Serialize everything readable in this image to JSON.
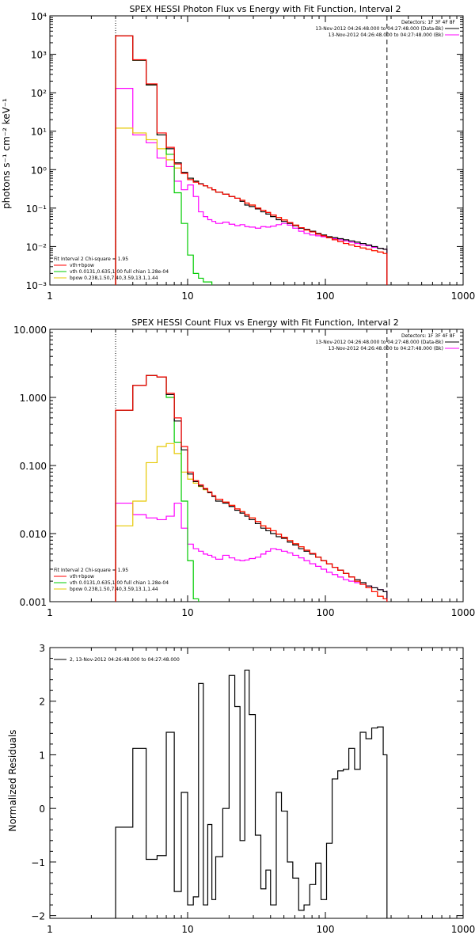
{
  "colors": {
    "data": "#000000",
    "bk": "#ff00ff",
    "total": "#ff0000",
    "vth": "#00cc00",
    "bpow": "#e6c800",
    "axis": "#000000"
  },
  "chart_data": [
    {
      "type": "line",
      "scale": "log-log",
      "title": "SPEX HESSI Photon Flux vs Energy with Fit Function, Interval 2",
      "xlabel": "",
      "ylabel": "photons s⁻¹ cm⁻² keV⁻¹",
      "xlim": [
        1,
        1000
      ],
      "ylim": [
        0.001,
        10000
      ],
      "xticks": [
        "1",
        "10",
        "100",
        "1000"
      ],
      "yticks": [
        "10⁻³",
        "10⁻²",
        "10⁻¹",
        "10⁰",
        "10¹",
        "10²",
        "10³",
        "10⁴"
      ],
      "ymin_ticks": [
        0.001,
        0.01,
        0.1,
        1,
        10,
        100,
        1000,
        10000
      ],
      "vlines": [
        3,
        280
      ],
      "legend_right": [
        "Detectors: 1F 3F 4F 8F",
        "13-Nov-2012 04:26:48.000 to 04:27:48.000 (Data-Bk)",
        "13-Nov-2012 04:26:48.000 to 04:27:48.000 (Bk)"
      ],
      "legend_left": [
        "Fit Interval 2   Chi-square = 1.95",
        "vth+bpow",
        "vth 0.0131,0.635,1.00  full chian 1.28e-04",
        "bpow 0.238,1.50,7.40,3.59,13.1,1.44"
      ],
      "edges": [
        3,
        4,
        5,
        6,
        7,
        8,
        9,
        10,
        11,
        12,
        13,
        14,
        15,
        16,
        18,
        20,
        22,
        24,
        26,
        28,
        31,
        34,
        37,
        40,
        44,
        48,
        53,
        58,
        64,
        70,
        77,
        85,
        93,
        102,
        112,
        123,
        135,
        148,
        163,
        179,
        197,
        217,
        239,
        263,
        280
      ],
      "series": [
        {
          "name": "Data-Bk",
          "key": "data",
          "values": [
            3000,
            700,
            160,
            8,
            3.5,
            1.5,
            0.85,
            0.6,
            0.5,
            0.43,
            0.38,
            0.34,
            0.3,
            0.26,
            0.23,
            0.2,
            0.18,
            0.15,
            0.12,
            0.11,
            0.095,
            0.08,
            0.07,
            0.06,
            0.05,
            0.045,
            0.04,
            0.035,
            0.03,
            0.028,
            0.025,
            0.022,
            0.02,
            0.018,
            0.017,
            0.016,
            0.015,
            0.014,
            0.013,
            0.012,
            0.011,
            0.01,
            0.009,
            0.0085
          ]
        },
        {
          "name": "Bk",
          "key": "bk",
          "values": [
            130,
            8,
            5,
            2,
            1.2,
            0.5,
            0.3,
            0.4,
            0.2,
            0.08,
            0.06,
            0.05,
            0.045,
            0.04,
            0.043,
            0.038,
            0.035,
            0.037,
            0.033,
            0.032,
            0.03,
            0.033,
            0.032,
            0.034,
            0.037,
            0.04,
            0.036,
            0.03,
            0.025,
            0.022,
            0.02,
            0.019,
            0.018,
            0.017,
            0.016,
            0.015,
            0.014,
            0.013,
            0.012,
            0.011,
            0.0105,
            0.0095,
            0.009,
            0.0085
          ]
        },
        {
          "name": "vth+bpow",
          "key": "total",
          "values": [
            3000,
            720,
            170,
            9,
            3.8,
            1.4,
            0.8,
            0.55,
            0.47,
            0.42,
            0.38,
            0.34,
            0.3,
            0.26,
            0.23,
            0.2,
            0.18,
            0.16,
            0.135,
            0.12,
            0.1,
            0.088,
            0.077,
            0.066,
            0.057,
            0.049,
            0.042,
            0.036,
            0.031,
            0.027,
            0.024,
            0.021,
            0.019,
            0.017,
            0.015,
            0.0135,
            0.012,
            0.011,
            0.01,
            0.0092,
            0.0085,
            0.0078,
            0.0072,
            0.0066
          ]
        },
        {
          "name": "vth",
          "key": "vth",
          "values": [
            3000,
            700,
            160,
            8,
            2.5,
            0.25,
            0.04,
            0.006,
            0.002,
            0.0015,
            0.0012,
            0.0012
          ]
        },
        {
          "name": "bpow",
          "key": "bpow",
          "values": [
            12,
            9,
            6,
            3.5,
            1.8,
            1.1,
            0.8,
            0.6,
            0.5,
            0.43,
            0.38,
            0.34,
            0.3,
            0.26,
            0.23,
            0.2,
            0.18,
            0.16,
            0.135,
            0.12,
            0.1,
            0.088,
            0.077,
            0.066,
            0.057,
            0.049,
            0.042,
            0.036,
            0.031,
            0.027,
            0.024,
            0.021,
            0.019,
            0.017,
            0.015,
            0.0135,
            0.012,
            0.011,
            0.01,
            0.0092,
            0.0085,
            0.0078,
            0.0072,
            0.0066
          ]
        }
      ]
    },
    {
      "type": "line",
      "scale": "log-log",
      "title": "SPEX HESSI Count Flux vs Energy with Fit Function, Interval 2",
      "xlabel": "",
      "ylabel": "",
      "xlim": [
        1,
        1000
      ],
      "ylim": [
        0.001,
        10
      ],
      "xticks": [
        "1",
        "10",
        "100",
        "1000"
      ],
      "yticks": [
        "0.001",
        "0.010",
        "0.100",
        "1.000",
        "10.000"
      ],
      "ymin_ticks": [
        0.001,
        0.01,
        0.1,
        1,
        10
      ],
      "vlines": [
        3,
        280
      ],
      "legend_right": [
        "Detectors: 1F 3F 4F 8F",
        "13-Nov-2012 04:26:48.000 to 04:27:48.000 (Data-Bk)",
        "13-Nov-2012 04:26:48.000 to 04:27:48.000 (Bk)"
      ],
      "legend_left": [
        "Fit Interval 2   Chi-square = 1.95",
        "vth+bpow",
        "vth 0.0131,0.635,1.00  full chian 1.28e-04",
        "bpow 0.238,1.50,7.40,3.59,13.1,1.44"
      ],
      "edges": [
        3,
        4,
        5,
        6,
        7,
        8,
        9,
        10,
        11,
        12,
        13,
        14,
        15,
        16,
        18,
        20,
        22,
        24,
        26,
        28,
        31,
        34,
        37,
        40,
        44,
        48,
        53,
        58,
        64,
        70,
        77,
        85,
        93,
        102,
        112,
        123,
        135,
        148,
        163,
        179,
        197,
        217,
        239,
        263,
        280
      ],
      "series": [
        {
          "name": "Data-Bk",
          "key": "data",
          "values": [
            0.65,
            1.5,
            2.1,
            2.0,
            1.1,
            0.45,
            0.17,
            0.075,
            0.058,
            0.05,
            0.045,
            0.04,
            0.035,
            0.03,
            0.028,
            0.025,
            0.022,
            0.02,
            0.018,
            0.016,
            0.014,
            0.012,
            0.011,
            0.01,
            0.009,
            0.0085,
            0.0075,
            0.0068,
            0.006,
            0.0055,
            0.005,
            0.0045,
            0.004,
            0.0036,
            0.0032,
            0.0029,
            0.0026,
            0.0023,
            0.0021,
            0.0019,
            0.0017,
            0.0016,
            0.0015,
            0.0014
          ]
        },
        {
          "name": "Bk",
          "key": "bk",
          "values": [
            0.028,
            0.019,
            0.017,
            0.016,
            0.018,
            0.028,
            0.012,
            0.007,
            0.006,
            0.0055,
            0.005,
            0.0048,
            0.0045,
            0.0042,
            0.0048,
            0.0044,
            0.0041,
            0.004,
            0.0041,
            0.0043,
            0.0045,
            0.005,
            0.0055,
            0.006,
            0.0058,
            0.0055,
            0.0052,
            0.0048,
            0.0044,
            0.004,
            0.0036,
            0.0033,
            0.003,
            0.0027,
            0.0025,
            0.0023,
            0.0021,
            0.002,
            0.0019,
            0.0018,
            0.0017,
            0.0016,
            0.0015,
            0.0014
          ]
        },
        {
          "name": "vth+bpow",
          "key": "total",
          "values": [
            0.65,
            1.5,
            2.1,
            2.0,
            1.15,
            0.5,
            0.19,
            0.08,
            0.06,
            0.052,
            0.046,
            0.041,
            0.036,
            0.032,
            0.029,
            0.026,
            0.023,
            0.021,
            0.019,
            0.017,
            0.015,
            0.013,
            0.012,
            0.011,
            0.0098,
            0.0088,
            0.0079,
            0.0071,
            0.0064,
            0.0057,
            0.0051,
            0.0045,
            0.004,
            0.0036,
            0.0032,
            0.0029,
            0.0026,
            0.0023,
            0.002,
            0.0018,
            0.0016,
            0.0014,
            0.0012,
            0.0011
          ]
        },
        {
          "name": "vth",
          "key": "vth",
          "values": [
            0.65,
            1.5,
            2.1,
            2.0,
            1.0,
            0.22,
            0.03,
            0.004,
            0.0011
          ]
        },
        {
          "name": "bpow",
          "key": "bpow",
          "values": [
            0.013,
            0.03,
            0.11,
            0.19,
            0.21,
            0.15,
            0.08,
            0.063,
            0.055,
            0.049,
            0.044,
            0.04,
            0.036,
            0.032,
            0.029,
            0.026,
            0.023,
            0.021,
            0.019,
            0.017,
            0.015,
            0.013,
            0.012,
            0.011,
            0.0098,
            0.0088,
            0.0079,
            0.0071,
            0.0064,
            0.0057,
            0.0051,
            0.0045,
            0.004,
            0.0036,
            0.0032,
            0.0029,
            0.0026,
            0.0023,
            0.002,
            0.0018,
            0.0016,
            0.0014,
            0.0012,
            0.0011
          ]
        }
      ]
    },
    {
      "type": "line",
      "scale": "log-linear",
      "title": "",
      "xlabel": "",
      "ylabel": "Normalized Residuals",
      "xlim": [
        1,
        1000
      ],
      "ylim": [
        -2.05,
        3
      ],
      "xticks": [
        "1",
        "10",
        "100",
        "1000"
      ],
      "yticks": [
        "−2",
        "−1",
        "0",
        "1",
        "2",
        "3"
      ],
      "legend_left": [
        "2, 13-Nov-2012 04:26:48.000 to 04:27:48.000"
      ],
      "edges": [
        3,
        4,
        5,
        6,
        7,
        8,
        9,
        10,
        11,
        12,
        13,
        14,
        15,
        16,
        18,
        20,
        22,
        24,
        26,
        28,
        31,
        34,
        37,
        40,
        44,
        48,
        53,
        58,
        64,
        70,
        77,
        85,
        93,
        102,
        112,
        123,
        135,
        148,
        163,
        179,
        197,
        217,
        239,
        263,
        280
      ],
      "series": [
        {
          "name": "2, 13-Nov-2012 04:26:48.000 to 04:27:48.000",
          "key": "data",
          "values": [
            -0.35,
            1.12,
            -0.95,
            -0.88,
            1.42,
            -1.55,
            0.3,
            -1.8,
            -1.65,
            2.33,
            -1.8,
            -0.3,
            -1.7,
            -0.9,
            0.0,
            2.48,
            1.9,
            -0.6,
            2.58,
            1.75,
            -0.5,
            -1.5,
            -1.15,
            -1.8,
            0.3,
            -0.05,
            -1.0,
            -1.3,
            -1.9,
            -1.8,
            -1.42,
            -1.02,
            -1.7,
            -0.65,
            0.55,
            0.7,
            0.73,
            1.12,
            0.73,
            1.42,
            1.3,
            1.5,
            1.52,
            1.0
          ]
        }
      ]
    }
  ]
}
